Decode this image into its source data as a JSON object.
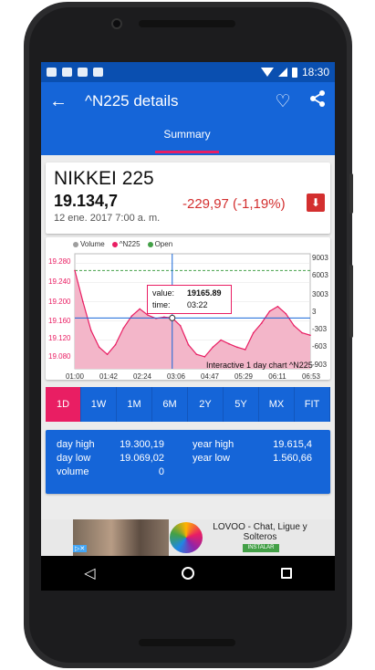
{
  "status_bar": {
    "time": "18:30"
  },
  "app_bar": {
    "back_icon": "back-arrow-icon",
    "title": "^N225 details",
    "favorite_icon": "heart-icon",
    "share_icon": "share-icon"
  },
  "tabs": [
    {
      "label": "Summary",
      "active": true
    }
  ],
  "quote": {
    "name": "NIKKEI 225",
    "price": "19.134,7",
    "change": "-229,97 (-1,19%)",
    "date": "12 ene. 2017 7:00 a. m.",
    "trend_icon": "down-arrow-icon",
    "change_color": "#d32f2f"
  },
  "chart": {
    "legend": [
      "Volume",
      "^N225",
      "Open"
    ],
    "y_left_ticks": [
      "19.280",
      "19.240",
      "19.200",
      "19.160",
      "19.120",
      "19.080"
    ],
    "y_right_ticks": [
      "9003",
      "6003",
      "3003",
      "3",
      "-303",
      "-603",
      "-903"
    ],
    "x_ticks": [
      "01:00",
      "01:42",
      "02:24",
      "03:06",
      "04:47",
      "05:29",
      "06:11",
      "06:53"
    ],
    "caption": "Interactive 1 day chart ^N225",
    "tooltip": {
      "value_label": "value:",
      "value": "19165.89",
      "time_label": "time:",
      "time": "03:22"
    }
  },
  "chart_data": {
    "type": "area",
    "title": "Interactive 1 day chart ^N225",
    "xlabel": "",
    "ylabel": "",
    "x": [
      "01:00",
      "01:10",
      "01:20",
      "01:30",
      "01:42",
      "01:55",
      "02:10",
      "02:24",
      "02:40",
      "02:55",
      "03:06",
      "03:15",
      "03:22",
      "03:35",
      "03:50",
      "04:05",
      "04:20",
      "04:35",
      "04:47",
      "05:00",
      "05:15",
      "05:29",
      "05:40",
      "05:50",
      "06:00",
      "06:11",
      "06:20",
      "06:30",
      "06:40",
      "06:53"
    ],
    "series": [
      {
        "name": "^N225",
        "values": [
          19265,
          19200,
          19140,
          19105,
          19090,
          19110,
          19145,
          19170,
          19185,
          19172,
          19165,
          19168,
          19166,
          19150,
          19110,
          19090,
          19085,
          19105,
          19120,
          19112,
          19105,
          19100,
          19135,
          19155,
          19180,
          19190,
          19175,
          19150,
          19135,
          19130
        ]
      }
    ],
    "ylim": [
      19060,
      19300
    ],
    "tooltip": {
      "time": "03:22",
      "value": 19165.89
    }
  },
  "ranges": [
    {
      "label": "1D",
      "active": true
    },
    {
      "label": "1W",
      "active": false
    },
    {
      "label": "1M",
      "active": false
    },
    {
      "label": "6M",
      "active": false
    },
    {
      "label": "2Y",
      "active": false
    },
    {
      "label": "5Y",
      "active": false
    },
    {
      "label": "MX",
      "active": false
    },
    {
      "label": "FIT",
      "active": false
    }
  ],
  "stats": {
    "day_high_label": "day high",
    "day_high": "19.300,19",
    "day_low_label": "day low",
    "day_low": "19.069,02",
    "volume_label": "volume",
    "volume": "0",
    "year_high_label": "year high",
    "year_high": "19.615,4",
    "year_low_label": "year low",
    "year_low": "1.560,66"
  },
  "ad": {
    "title": "LOVOO - Chat, Ligue y Solteros",
    "install": "INSTALAR"
  },
  "colors": {
    "primary": "#1565d8",
    "accent": "#e91e63",
    "status_bar": "#0a4fb0",
    "down": "#d32f2f"
  }
}
